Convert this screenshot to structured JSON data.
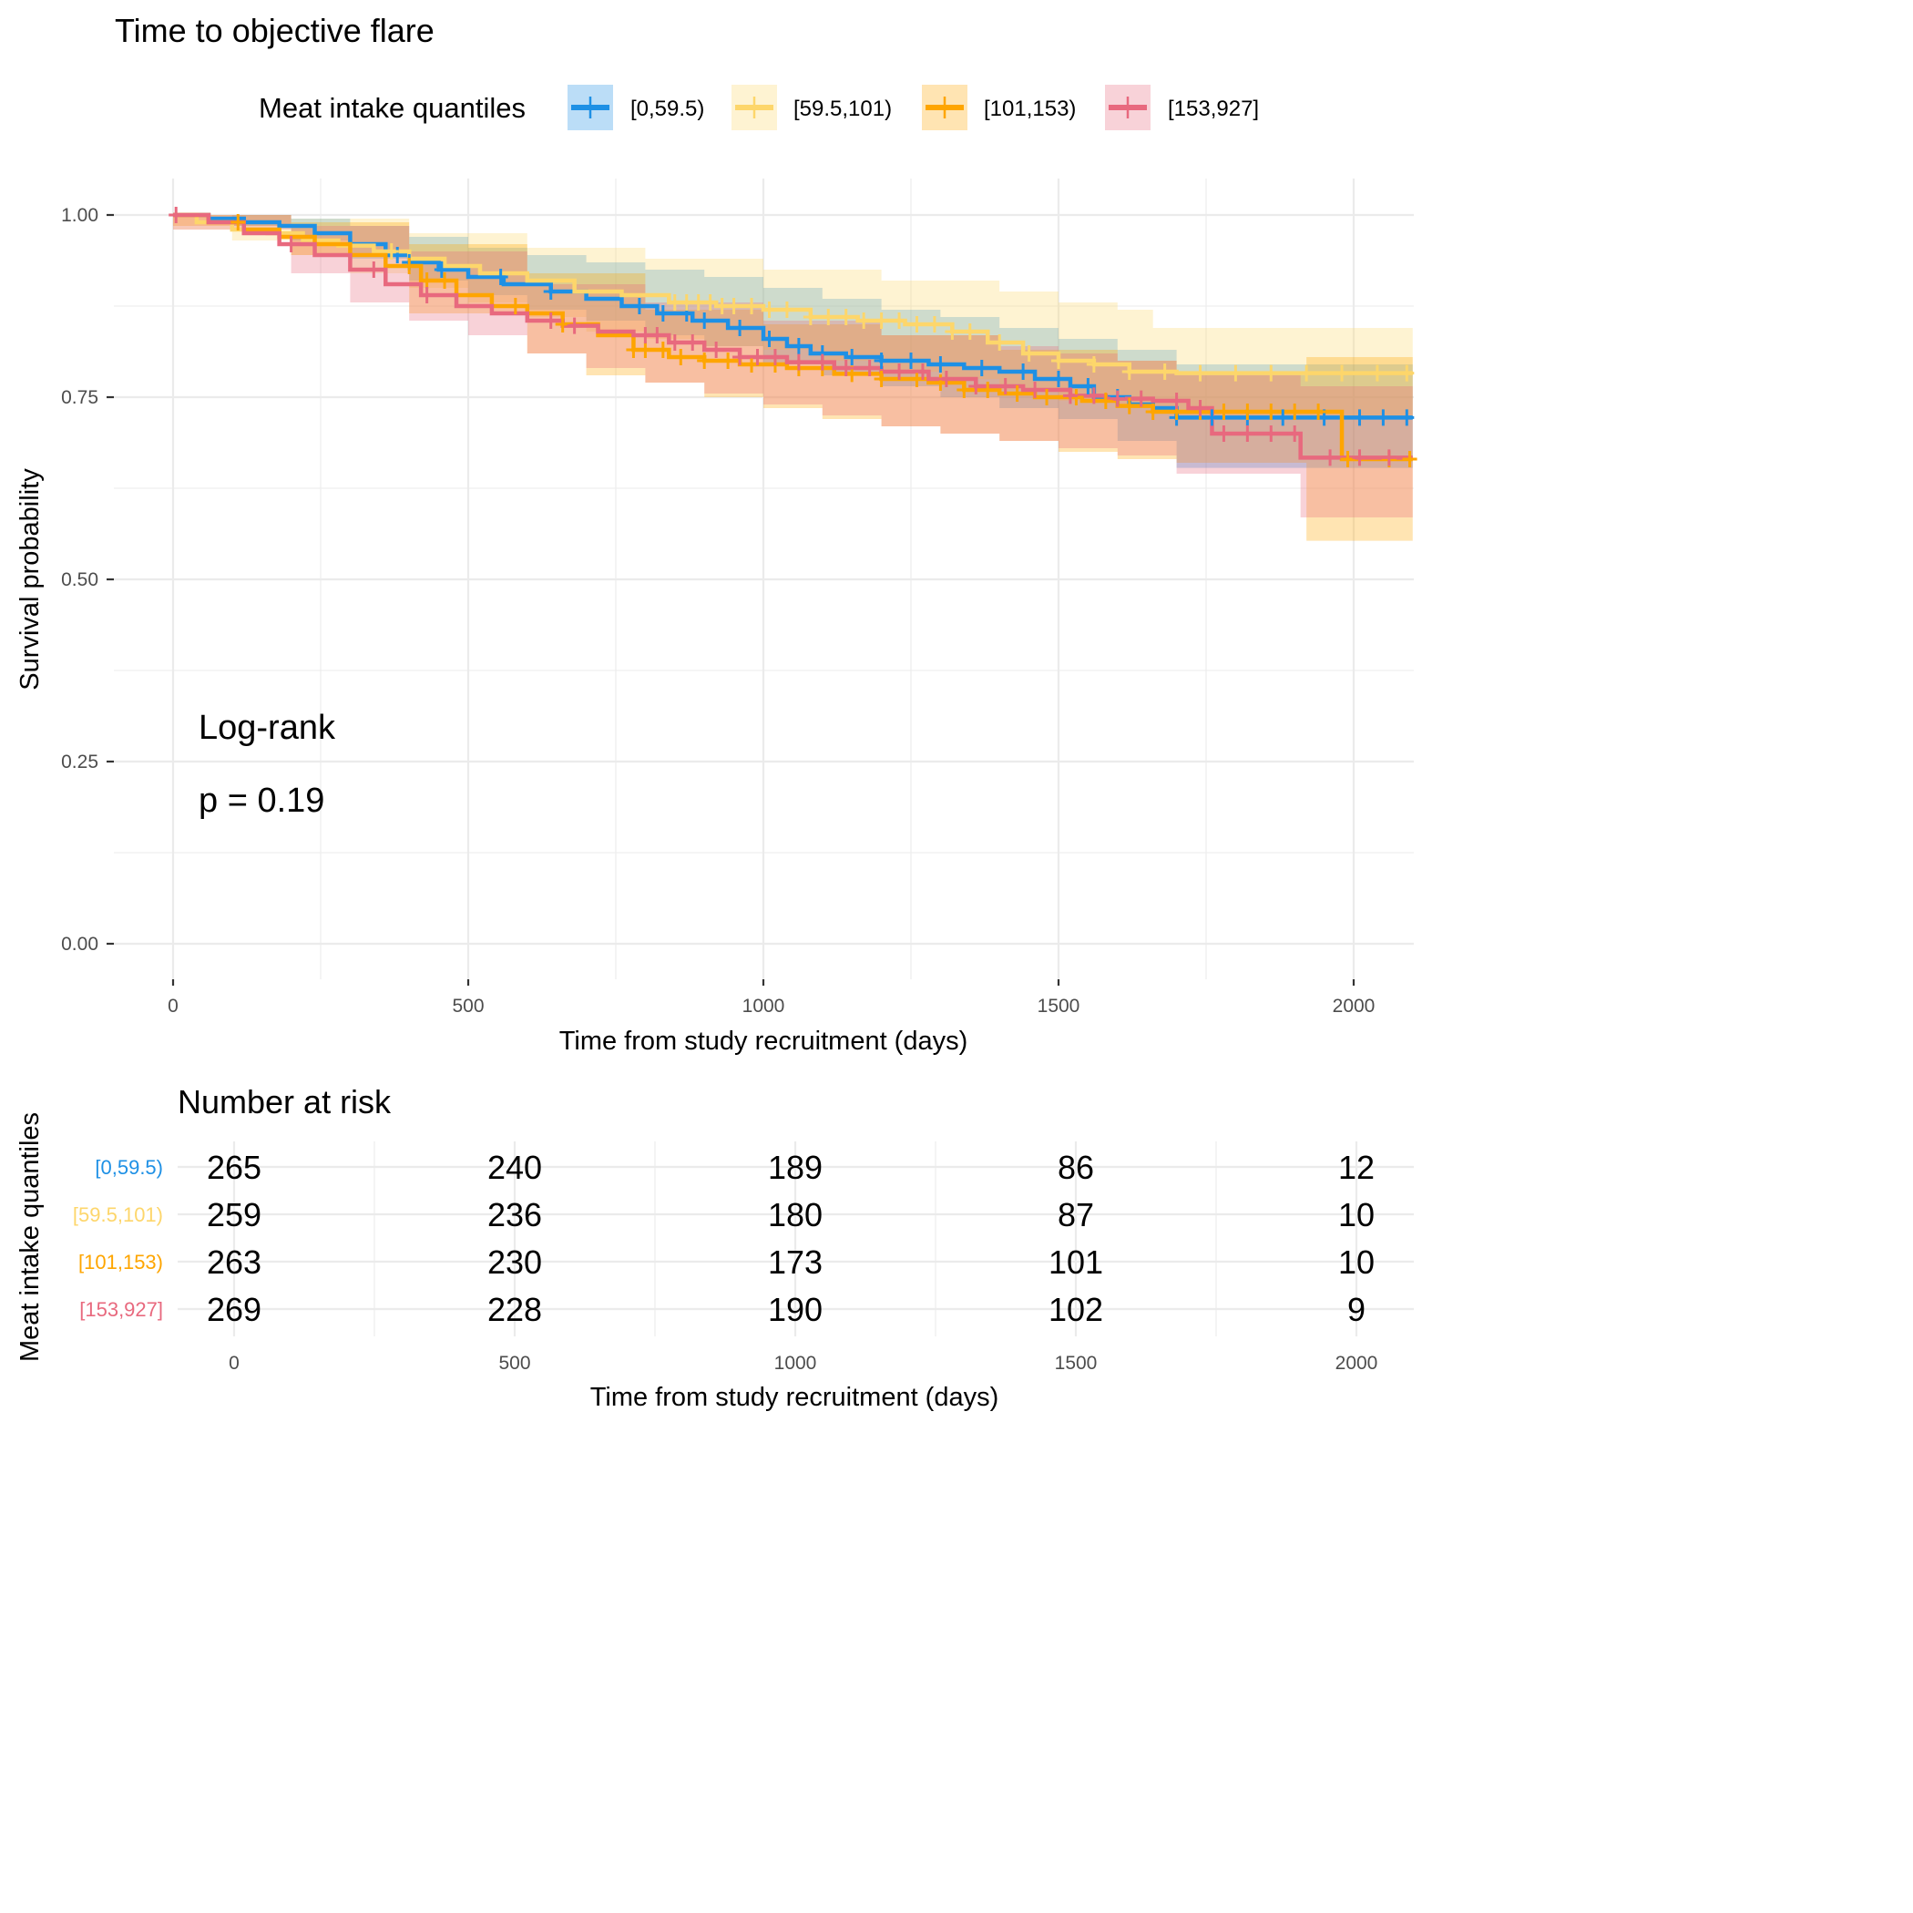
{
  "chart_data": {
    "type": "line",
    "subtype": "kaplan-meier",
    "title": "Time to objective flare",
    "xlabel": "Time from study recruitment (days)",
    "ylabel": "Survival probability",
    "xlim": [
      -100,
      2100
    ],
    "ylim": [
      -0.04,
      1.04
    ],
    "x_ticks": [
      0,
      500,
      1000,
      1500,
      2000
    ],
    "x_tick_labels": [
      "0",
      "500",
      "1000",
      "1500",
      "2000"
    ],
    "y_ticks": [
      0,
      0.25,
      0.5,
      0.75,
      1.0
    ],
    "y_tick_labels": [
      "0.00",
      "0.25",
      "0.50",
      "0.75",
      "1.00"
    ],
    "grid": true,
    "legend": {
      "title": "Meat intake quantiles",
      "position": "top"
    },
    "annotation": {
      "line1": "Log-rank",
      "line2": "p = 0.19"
    },
    "series": [
      {
        "name": "[0,59.5)",
        "color": "#1e90e5",
        "steps": [
          [
            0,
            1.0
          ],
          [
            60,
            0.995
          ],
          [
            120,
            0.99
          ],
          [
            180,
            0.985
          ],
          [
            240,
            0.975
          ],
          [
            300,
            0.96
          ],
          [
            360,
            0.945
          ],
          [
            400,
            0.935
          ],
          [
            450,
            0.925
          ],
          [
            500,
            0.915
          ],
          [
            560,
            0.905
          ],
          [
            640,
            0.895
          ],
          [
            700,
            0.885
          ],
          [
            760,
            0.875
          ],
          [
            820,
            0.865
          ],
          [
            880,
            0.855
          ],
          [
            940,
            0.845
          ],
          [
            1000,
            0.83
          ],
          [
            1040,
            0.82
          ],
          [
            1080,
            0.81
          ],
          [
            1140,
            0.805
          ],
          [
            1200,
            0.8
          ],
          [
            1280,
            0.795
          ],
          [
            1340,
            0.79
          ],
          [
            1400,
            0.785
          ],
          [
            1460,
            0.775
          ],
          [
            1520,
            0.765
          ],
          [
            1560,
            0.75
          ],
          [
            1620,
            0.74
          ],
          [
            1660,
            0.735
          ],
          [
            1700,
            0.722
          ],
          [
            2100,
            0.722
          ]
        ],
        "ci_upper": [
          [
            0,
            1.0
          ],
          [
            100,
            1.0
          ],
          [
            200,
            0.995
          ],
          [
            300,
            0.985
          ],
          [
            400,
            0.97
          ],
          [
            500,
            0.955
          ],
          [
            600,
            0.945
          ],
          [
            700,
            0.935
          ],
          [
            800,
            0.925
          ],
          [
            900,
            0.915
          ],
          [
            1000,
            0.9
          ],
          [
            1100,
            0.885
          ],
          [
            1200,
            0.87
          ],
          [
            1300,
            0.86
          ],
          [
            1400,
            0.845
          ],
          [
            1500,
            0.83
          ],
          [
            1600,
            0.815
          ],
          [
            1700,
            0.795
          ],
          [
            2100,
            0.795
          ]
        ],
        "ci_lower": [
          [
            0,
            1.0
          ],
          [
            100,
            0.985
          ],
          [
            200,
            0.965
          ],
          [
            300,
            0.94
          ],
          [
            400,
            0.91
          ],
          [
            500,
            0.89
          ],
          [
            600,
            0.87
          ],
          [
            700,
            0.855
          ],
          [
            800,
            0.835
          ],
          [
            900,
            0.82
          ],
          [
            1000,
            0.795
          ],
          [
            1100,
            0.78
          ],
          [
            1200,
            0.765
          ],
          [
            1300,
            0.75
          ],
          [
            1400,
            0.735
          ],
          [
            1500,
            0.72
          ],
          [
            1600,
            0.69
          ],
          [
            1700,
            0.653
          ],
          [
            2100,
            0.653
          ]
        ],
        "censor_times": [
          380,
          400,
          455,
          555,
          640,
          790,
          830,
          870,
          900,
          960,
          1010,
          1060,
          1100,
          1150,
          1200,
          1250,
          1300,
          1370,
          1440,
          1500,
          1550,
          1600,
          1700,
          1760,
          1820,
          1880,
          1950,
          2010,
          2050,
          2090
        ],
        "at_risk": [
          265,
          240,
          189,
          86,
          12
        ]
      },
      {
        "name": "[59.5,101)",
        "color": "#fdd66b",
        "steps": [
          [
            0,
            1.0
          ],
          [
            40,
            0.99
          ],
          [
            100,
            0.98
          ],
          [
            160,
            0.975
          ],
          [
            220,
            0.965
          ],
          [
            280,
            0.958
          ],
          [
            340,
            0.95
          ],
          [
            400,
            0.94
          ],
          [
            460,
            0.93
          ],
          [
            520,
            0.92
          ],
          [
            600,
            0.91
          ],
          [
            680,
            0.895
          ],
          [
            760,
            0.89
          ],
          [
            840,
            0.88
          ],
          [
            920,
            0.875
          ],
          [
            1000,
            0.87
          ],
          [
            1080,
            0.86
          ],
          [
            1160,
            0.855
          ],
          [
            1240,
            0.85
          ],
          [
            1320,
            0.84
          ],
          [
            1380,
            0.825
          ],
          [
            1440,
            0.81
          ],
          [
            1500,
            0.8
          ],
          [
            1560,
            0.795
          ],
          [
            1620,
            0.785
          ],
          [
            1700,
            0.783
          ],
          [
            2100,
            0.783
          ]
        ],
        "ci_upper": [
          [
            0,
            1.0
          ],
          [
            200,
            0.995
          ],
          [
            400,
            0.975
          ],
          [
            600,
            0.955
          ],
          [
            800,
            0.94
          ],
          [
            1000,
            0.925
          ],
          [
            1200,
            0.91
          ],
          [
            1400,
            0.895
          ],
          [
            1500,
            0.88
          ],
          [
            1600,
            0.87
          ],
          [
            1660,
            0.845
          ],
          [
            2100,
            0.845
          ]
        ],
        "ci_lower": [
          [
            0,
            0.98
          ],
          [
            100,
            0.965
          ],
          [
            200,
            0.945
          ],
          [
            300,
            0.92
          ],
          [
            400,
            0.9
          ],
          [
            500,
            0.88
          ],
          [
            600,
            0.86
          ],
          [
            700,
            0.84
          ],
          [
            800,
            0.83
          ],
          [
            900,
            0.82
          ],
          [
            1000,
            0.815
          ],
          [
            1100,
            0.8
          ],
          [
            1200,
            0.785
          ],
          [
            1300,
            0.775
          ],
          [
            1400,
            0.76
          ],
          [
            1500,
            0.745
          ],
          [
            1600,
            0.735
          ],
          [
            1700,
            0.725
          ],
          [
            2100,
            0.725
          ]
        ],
        "censor_times": [
          370,
          850,
          870,
          890,
          910,
          930,
          950,
          980,
          1010,
          1040,
          1080,
          1110,
          1140,
          1170,
          1200,
          1230,
          1260,
          1290,
          1320,
          1350,
          1400,
          1450,
          1500,
          1560,
          1620,
          1680,
          1740,
          1800,
          1860,
          1920,
          1980,
          2040,
          2090
        ],
        "at_risk": [
          259,
          236,
          180,
          87,
          10
        ]
      },
      {
        "name": "[101,153)",
        "color": "#fea500",
        "steps": [
          [
            0,
            1.0
          ],
          [
            60,
            0.99
          ],
          [
            120,
            0.98
          ],
          [
            180,
            0.97
          ],
          [
            240,
            0.96
          ],
          [
            300,
            0.945
          ],
          [
            360,
            0.93
          ],
          [
            420,
            0.91
          ],
          [
            480,
            0.89
          ],
          [
            540,
            0.875
          ],
          [
            600,
            0.865
          ],
          [
            660,
            0.85
          ],
          [
            720,
            0.835
          ],
          [
            780,
            0.815
          ],
          [
            840,
            0.805
          ],
          [
            900,
            0.8
          ],
          [
            960,
            0.795
          ],
          [
            1040,
            0.79
          ],
          [
            1120,
            0.782
          ],
          [
            1200,
            0.775
          ],
          [
            1280,
            0.77
          ],
          [
            1340,
            0.76
          ],
          [
            1400,
            0.755
          ],
          [
            1460,
            0.75
          ],
          [
            1540,
            0.745
          ],
          [
            1600,
            0.738
          ],
          [
            1660,
            0.73
          ],
          [
            1980,
            0.73
          ],
          [
            1980,
            0.665
          ],
          [
            2100,
            0.665
          ]
        ],
        "ci_upper": [
          [
            0,
            1.0
          ],
          [
            200,
            0.99
          ],
          [
            400,
            0.96
          ],
          [
            600,
            0.92
          ],
          [
            800,
            0.87
          ],
          [
            1000,
            0.85
          ],
          [
            1200,
            0.835
          ],
          [
            1400,
            0.815
          ],
          [
            1600,
            0.8
          ],
          [
            1700,
            0.78
          ],
          [
            1920,
            0.78
          ],
          [
            1920,
            0.805
          ],
          [
            2100,
            0.805
          ]
        ],
        "ci_lower": [
          [
            0,
            0.985
          ],
          [
            200,
            0.945
          ],
          [
            400,
            0.865
          ],
          [
            600,
            0.81
          ],
          [
            700,
            0.78
          ],
          [
            800,
            0.77
          ],
          [
            900,
            0.75
          ],
          [
            1000,
            0.735
          ],
          [
            1100,
            0.72
          ],
          [
            1200,
            0.71
          ],
          [
            1300,
            0.7
          ],
          [
            1400,
            0.69
          ],
          [
            1500,
            0.675
          ],
          [
            1600,
            0.665
          ],
          [
            1700,
            0.66
          ],
          [
            1920,
            0.66
          ],
          [
            1920,
            0.553
          ],
          [
            2100,
            0.553
          ]
        ],
        "censor_times": [
          110,
          400,
          430,
          460,
          580,
          660,
          780,
          800,
          830,
          860,
          900,
          940,
          980,
          1020,
          1060,
          1100,
          1150,
          1200,
          1260,
          1300,
          1340,
          1380,
          1430,
          1480,
          1530,
          1580,
          1620,
          1660,
          1700,
          1740,
          1780,
          1820,
          1860,
          1900,
          1940,
          1990,
          2060,
          2095
        ],
        "at_risk": [
          263,
          230,
          173,
          101,
          10
        ]
      },
      {
        "name": "[153,927]",
        "color": "#e8697e",
        "steps": [
          [
            0,
            1.0
          ],
          [
            60,
            0.99
          ],
          [
            120,
            0.975
          ],
          [
            180,
            0.96
          ],
          [
            240,
            0.945
          ],
          [
            300,
            0.925
          ],
          [
            360,
            0.905
          ],
          [
            420,
            0.89
          ],
          [
            480,
            0.875
          ],
          [
            540,
            0.865
          ],
          [
            600,
            0.855
          ],
          [
            660,
            0.848
          ],
          [
            720,
            0.84
          ],
          [
            780,
            0.835
          ],
          [
            840,
            0.825
          ],
          [
            900,
            0.815
          ],
          [
            960,
            0.805
          ],
          [
            1040,
            0.798
          ],
          [
            1120,
            0.79
          ],
          [
            1200,
            0.785
          ],
          [
            1280,
            0.775
          ],
          [
            1360,
            0.765
          ],
          [
            1440,
            0.76
          ],
          [
            1520,
            0.752
          ],
          [
            1580,
            0.748
          ],
          [
            1660,
            0.745
          ],
          [
            1720,
            0.735
          ],
          [
            1760,
            0.7
          ],
          [
            1910,
            0.7
          ],
          [
            1910,
            0.667
          ],
          [
            2100,
            0.667
          ]
        ],
        "ci_upper": [
          [
            0,
            1.0
          ],
          [
            200,
            0.985
          ],
          [
            400,
            0.95
          ],
          [
            600,
            0.905
          ],
          [
            800,
            0.88
          ],
          [
            1000,
            0.855
          ],
          [
            1200,
            0.835
          ],
          [
            1400,
            0.82
          ],
          [
            1500,
            0.81
          ],
          [
            1600,
            0.8
          ],
          [
            1700,
            0.785
          ],
          [
            1910,
            0.785
          ],
          [
            1910,
            0.765
          ],
          [
            2100,
            0.765
          ]
        ],
        "ci_lower": [
          [
            0,
            0.98
          ],
          [
            200,
            0.92
          ],
          [
            300,
            0.88
          ],
          [
            400,
            0.855
          ],
          [
            500,
            0.835
          ],
          [
            600,
            0.81
          ],
          [
            700,
            0.79
          ],
          [
            800,
            0.77
          ],
          [
            900,
            0.755
          ],
          [
            1000,
            0.74
          ],
          [
            1100,
            0.725
          ],
          [
            1200,
            0.71
          ],
          [
            1300,
            0.7
          ],
          [
            1400,
            0.69
          ],
          [
            1500,
            0.68
          ],
          [
            1600,
            0.67
          ],
          [
            1700,
            0.645
          ],
          [
            1910,
            0.645
          ],
          [
            1910,
            0.585
          ],
          [
            2100,
            0.585
          ]
        ],
        "censor_times": [
          5,
          200,
          340,
          430,
          640,
          680,
          800,
          820,
          850,
          880,
          920,
          960,
          990,
          1020,
          1060,
          1100,
          1140,
          1180,
          1230,
          1270,
          1310,
          1360,
          1410,
          1460,
          1520,
          1560,
          1600,
          1640,
          1700,
          1740,
          1780,
          1820,
          1860,
          1900,
          1960,
          2010,
          2060
        ],
        "at_risk": [
          269,
          228,
          190,
          102,
          9
        ]
      }
    ],
    "risk_table": {
      "title": "Number at risk",
      "ylabel": "Meat intake quantiles",
      "xlabel": "Time from study recruitment (days)",
      "times": [
        0,
        500,
        1000,
        1500,
        2000
      ],
      "time_labels": [
        "0",
        "500",
        "1000",
        "1500",
        "2000"
      ]
    }
  }
}
